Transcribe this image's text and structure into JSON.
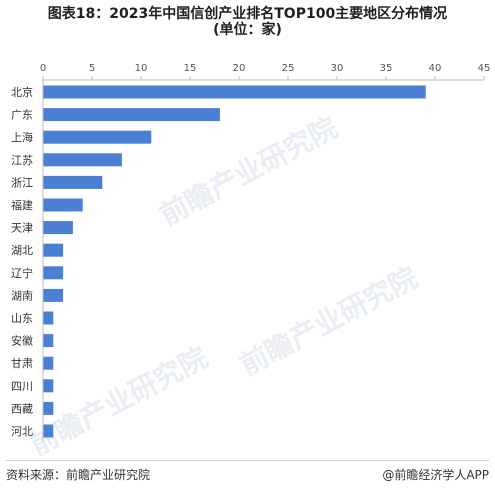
{
  "title_line1": "图表18：2023年中国信创产业排名TOP100主要地区分布情况",
  "title_line2": "(单位：家)",
  "source": "资料来源：前瞻产业研究院",
  "brand": "@前瞻经济学人APP",
  "watermark": "前瞻产业研究院",
  "colors": {
    "bar": "#4a7fd4",
    "axis": "#bbbbbb",
    "grid": "#ffffff",
    "tick_text": "#555555",
    "label_text": "#333333"
  },
  "chart_data": {
    "type": "bar",
    "orientation": "horizontal",
    "title": "图表18：2023年中国信创产业排名TOP100主要地区分布情况",
    "subtitle": "(单位：家)",
    "categories": [
      "北京",
      "广东",
      "上海",
      "江苏",
      "浙江",
      "福建",
      "天津",
      "湖北",
      "辽宁",
      "湖南",
      "山东",
      "安徽",
      "甘肃",
      "四川",
      "西藏",
      "河北"
    ],
    "values": [
      39,
      18,
      11,
      8,
      6,
      4,
      3,
      2,
      2,
      2,
      1,
      1,
      1,
      1,
      1,
      1
    ],
    "xlim": [
      0,
      45
    ],
    "xticks": [
      0,
      5,
      10,
      15,
      20,
      25,
      30,
      35,
      40,
      45
    ],
    "axis_position": "top",
    "grid": false,
    "legend": "none"
  }
}
